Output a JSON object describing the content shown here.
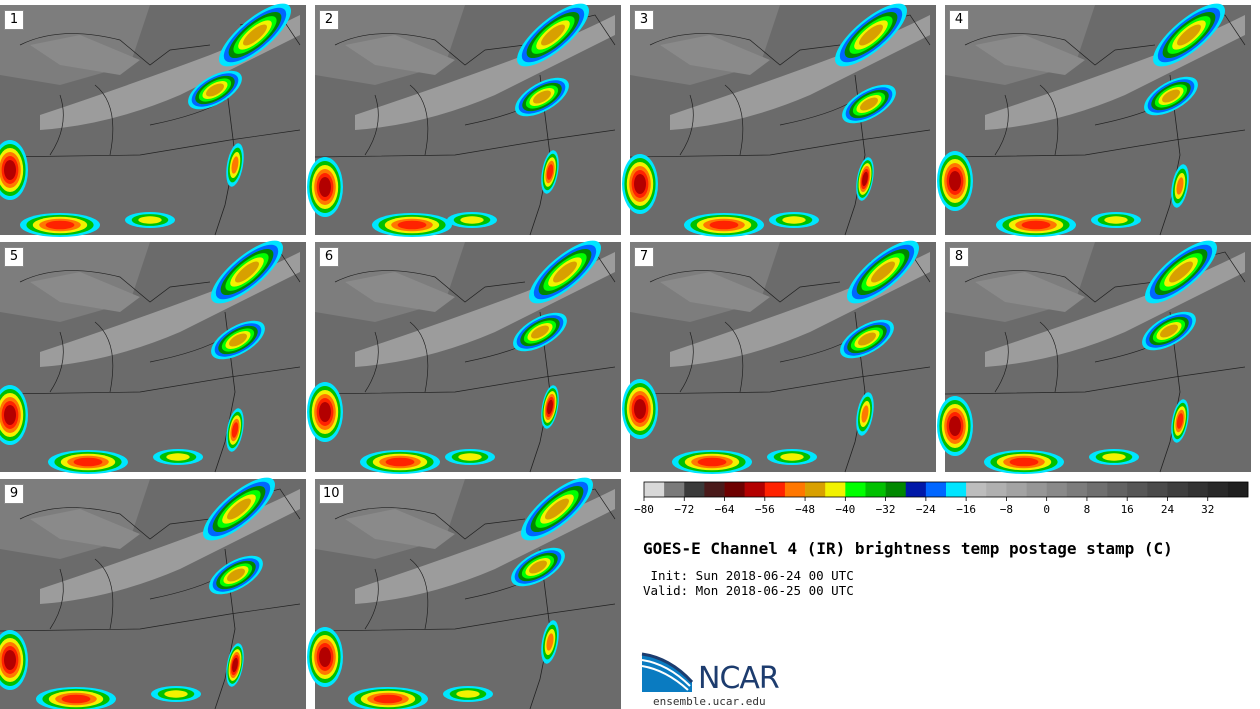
{
  "title": "GOES-E Channel 4 (IR) brightness temp postage stamp (C)",
  "init": " Init: Sun 2018-06-24 00 UTC",
  "valid": "Valid: Mon 2018-06-25 00 UTC",
  "panels": [
    {
      "label": "1"
    },
    {
      "label": "2"
    },
    {
      "label": "3"
    },
    {
      "label": "4"
    },
    {
      "label": "5"
    },
    {
      "label": "6"
    },
    {
      "label": "7"
    },
    {
      "label": "8"
    },
    {
      "label": "9"
    },
    {
      "label": "10"
    }
  ],
  "colorbar": {
    "min": -80,
    "max": 40,
    "step": 4,
    "tick_labels": [
      "-80",
      "-72",
      "-64",
      "-56",
      "-48",
      "-40",
      "-32",
      "-24",
      "-16",
      "-8",
      "0",
      "8",
      "16",
      "24",
      "32"
    ],
    "colors": [
      "#d8d8d8",
      "#7a7a7a",
      "#3a3a3a",
      "#4a1a1a",
      "#6e0000",
      "#b30000",
      "#ff2200",
      "#ff7700",
      "#d8a000",
      "#f2f200",
      "#00ff00",
      "#00c000",
      "#008800",
      "#0018a8",
      "#0066ff",
      "#00e5ff",
      "#bdbdbd",
      "#b0b0b0",
      "#a3a3a3",
      "#969696",
      "#898989",
      "#7c7c7c",
      "#6f6f6f",
      "#626262",
      "#565656",
      "#4a4a4a",
      "#3e3e3e",
      "#333333",
      "#292929",
      "#1f1f1f"
    ]
  },
  "logo": {
    "text": "NCAR",
    "url": "ensemble.ucar.edu",
    "colors": {
      "blue": "#0a7bc1",
      "dark": "#1d3c6e"
    }
  }
}
